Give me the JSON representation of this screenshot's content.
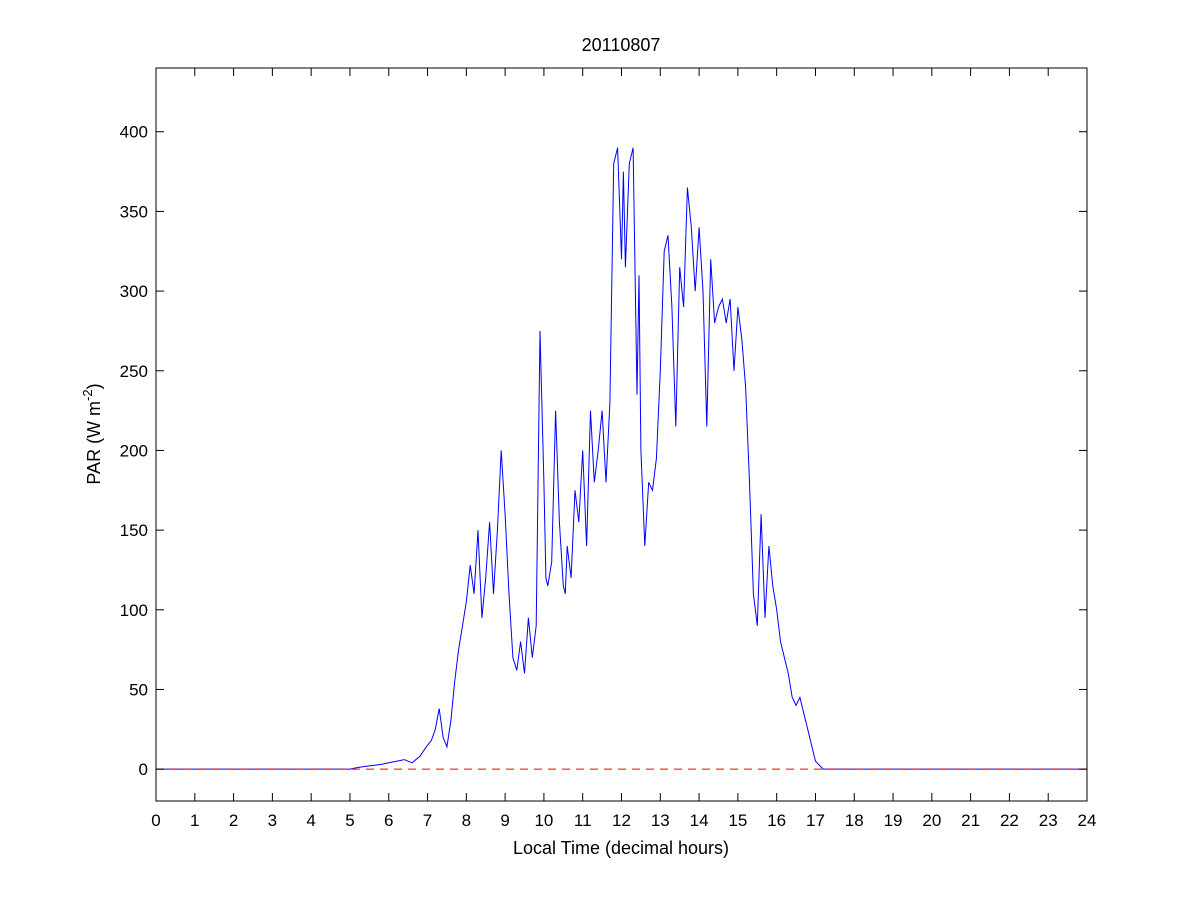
{
  "chart_data": {
    "type": "line",
    "title": "20110807",
    "xlabel": "Local Time (decimal hours)",
    "ylabel": {
      "text": "PAR (W m",
      "sup": "-2",
      "close": ")"
    },
    "xlim": [
      0,
      24
    ],
    "ylim": [
      -20,
      440
    ],
    "xticks": [
      0,
      1,
      2,
      3,
      4,
      5,
      6,
      7,
      8,
      9,
      10,
      11,
      12,
      13,
      14,
      15,
      16,
      17,
      18,
      19,
      20,
      21,
      22,
      23,
      24
    ],
    "yticks": [
      0,
      50,
      100,
      150,
      200,
      250,
      300,
      350,
      400
    ],
    "grid": false,
    "colors": {
      "series": "#0000ff",
      "zero_line": "#ff0000"
    },
    "series": [
      {
        "style": "solid",
        "color": "#0000ff",
        "x": [
          0,
          5.0,
          5.2,
          5.5,
          5.8,
          6.0,
          6.2,
          6.4,
          6.6,
          6.8,
          7.0,
          7.1,
          7.2,
          7.3,
          7.4,
          7.5,
          7.6,
          7.7,
          7.8,
          7.9,
          8.0,
          8.1,
          8.2,
          8.3,
          8.4,
          8.5,
          8.6,
          8.7,
          8.8,
          8.9,
          9.0,
          9.1,
          9.2,
          9.3,
          9.4,
          9.5,
          9.6,
          9.7,
          9.8,
          9.9,
          10.0,
          10.05,
          10.1,
          10.2,
          10.3,
          10.4,
          10.5,
          10.55,
          10.6,
          10.7,
          10.8,
          10.9,
          11.0,
          11.1,
          11.2,
          11.3,
          11.4,
          11.5,
          11.6,
          11.7,
          11.8,
          11.9,
          12.0,
          12.05,
          12.1,
          12.2,
          12.3,
          12.4,
          12.45,
          12.5,
          12.6,
          12.7,
          12.8,
          12.9,
          13.0,
          13.1,
          13.2,
          13.3,
          13.4,
          13.5,
          13.6,
          13.7,
          13.8,
          13.9,
          14.0,
          14.1,
          14.2,
          14.3,
          14.4,
          14.5,
          14.6,
          14.7,
          14.8,
          14.9,
          15.0,
          15.1,
          15.2,
          15.3,
          15.4,
          15.5,
          15.6,
          15.7,
          15.8,
          15.9,
          16.0,
          16.1,
          16.2,
          16.3,
          16.4,
          16.5,
          16.6,
          16.7,
          16.8,
          16.9,
          17.0,
          17.2,
          17.4,
          17.6,
          17.8,
          18.0,
          18.2,
          18.4,
          18.6,
          18.8,
          19.0,
          19.2,
          19.4,
          19.6,
          19.8,
          24
        ],
        "y": [
          0,
          0,
          1,
          2,
          3,
          4,
          5,
          6,
          4,
          8,
          15,
          18,
          25,
          38,
          20,
          14,
          30,
          55,
          75,
          90,
          105,
          128,
          110,
          150,
          95,
          120,
          155,
          110,
          150,
          200,
          160,
          110,
          70,
          62,
          80,
          60,
          95,
          70,
          90,
          275,
          180,
          120,
          115,
          130,
          225,
          155,
          115,
          110,
          140,
          120,
          175,
          155,
          200,
          140,
          225,
          180,
          200,
          225,
          180,
          230,
          380,
          390,
          320,
          375,
          315,
          380,
          390,
          235,
          310,
          200,
          140,
          180,
          175,
          195,
          250,
          325,
          335,
          290,
          215,
          315,
          290,
          365,
          340,
          300,
          340,
          300,
          215,
          320,
          280,
          290,
          295,
          280,
          295,
          250,
          290,
          270,
          240,
          180,
          110,
          90,
          160,
          95,
          140,
          115,
          100,
          80,
          70,
          60,
          45,
          40,
          45,
          35,
          25,
          15,
          5,
          0,
          0,
          0,
          0,
          0,
          0,
          0,
          0,
          0,
          0,
          0,
          0,
          0,
          0,
          0
        ]
      },
      {
        "style": "dashed",
        "color": "#ff0000",
        "x": [
          0,
          24
        ],
        "y": [
          0,
          0
        ]
      }
    ]
  }
}
